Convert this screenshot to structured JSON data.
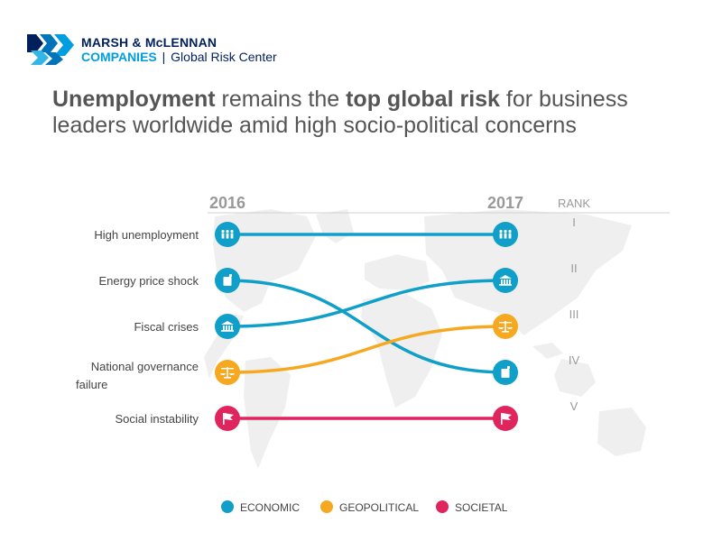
{
  "logo": {
    "line1": "MARSH & McLENNAN",
    "line2_brand": "COMPANIES",
    "line2_sep": "|",
    "line2_sub": "Global Risk Center"
  },
  "title": {
    "part1_bold": "Unemployment",
    "part2": " remains the ",
    "part3_bold": "top global risk",
    "part4": " for business leaders worldwide amid high socio-political concerns"
  },
  "colors": {
    "economic": "#0f9fc8",
    "geopolitical": "#f5a820",
    "societal": "#e0245e",
    "axis_text": "#999999",
    "label_text": "#444444"
  },
  "chart_data": {
    "type": "slope",
    "columns": [
      "2016",
      "2017"
    ],
    "rank_header": "RANK",
    "ranks": [
      "I",
      "II",
      "III",
      "IV",
      "V"
    ],
    "series": [
      {
        "name": "High unemployment",
        "category": "economic",
        "icon": "people-icon",
        "rank_2016": 1,
        "rank_2017": 1
      },
      {
        "name": "Energy price shock",
        "category": "economic",
        "icon": "fuel-can-icon",
        "rank_2016": 2,
        "rank_2017": 4
      },
      {
        "name": "Fiscal crises",
        "category": "economic",
        "icon": "bank-icon",
        "rank_2016": 3,
        "rank_2017": 2
      },
      {
        "name": "National governance failure",
        "category": "geopolitical",
        "icon": "scales-icon",
        "rank_2016": 4,
        "rank_2017": 3
      },
      {
        "name": "Social instability",
        "category": "societal",
        "icon": "flag-icon",
        "rank_2016": 5,
        "rank_2017": 5
      }
    ],
    "label_lines": {
      "National governance failure": [
        "National governance",
        "failure"
      ]
    },
    "legend": [
      {
        "key": "economic",
        "label": "ECONOMIC"
      },
      {
        "key": "geopolitical",
        "label": "GEOPOLITICAL"
      },
      {
        "key": "societal",
        "label": "SOCIETAL"
      }
    ]
  }
}
